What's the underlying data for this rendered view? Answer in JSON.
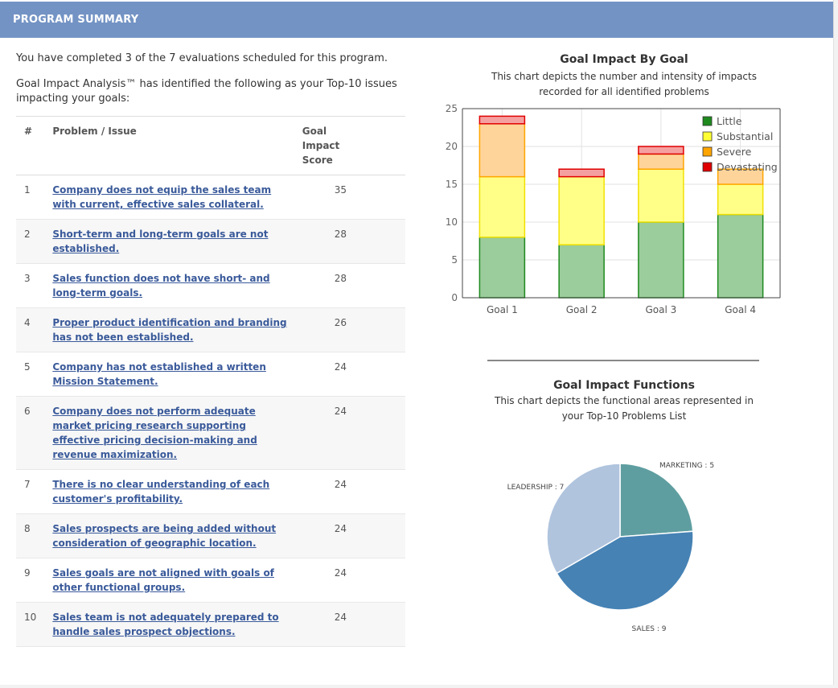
{
  "header": {
    "title": "PROGRAM SUMMARY"
  },
  "intro": {
    "completed": "You have completed 3 of the 7 evaluations scheduled for this program.",
    "analysis": "Goal Impact Analysis™ has identified the following as your Top-10 issues impacting your goals:"
  },
  "table": {
    "headers": {
      "num": "#",
      "problem": "Problem / Issue",
      "score": "Goal Impact Score"
    },
    "rows": [
      {
        "num": "1",
        "problem": "Company does not equip the sales team with current, effective sales collateral.",
        "score": "35"
      },
      {
        "num": "2",
        "problem": "Short-term and long-term goals are not established.",
        "score": "28"
      },
      {
        "num": "3",
        "problem": "Sales function does not have short- and long-term goals.",
        "score": "28"
      },
      {
        "num": "4",
        "problem": "Proper product identification and branding has not been established.",
        "score": "26"
      },
      {
        "num": "5",
        "problem": "Company has not established a written Mission Statement.",
        "score": "24"
      },
      {
        "num": "6",
        "problem": "Company does not perform adequate market pricing research supporting effective pricing decision-making and revenue maximization.",
        "score": "24"
      },
      {
        "num": "7",
        "problem": "There is no clear understanding of each customer's profitability.",
        "score": "24"
      },
      {
        "num": "8",
        "problem": "Sales prospects are being added without consideration of geographic location.",
        "score": "24"
      },
      {
        "num": "9",
        "problem": "Sales goals are not aligned with goals of other functional groups.",
        "score": "24"
      },
      {
        "num": "10",
        "problem": "Sales team is not adequately prepared to handle sales prospect objections.",
        "score": "24"
      }
    ]
  },
  "bar_chart": {
    "title": "Goal Impact By Goal",
    "subtitle": "This chart depicts the number and intensity of impacts recorded for all identified problems"
  },
  "pie_chart": {
    "title": "Goal Impact Functions",
    "subtitle": "This chart depicts the functional areas represented in your Top-10 Problems List"
  },
  "colors": {
    "header": "#7393c4",
    "link": "#3a5a9a",
    "little": "#2e8b2e",
    "substantial": "#f5f500",
    "severe": "#ffa500",
    "devastating": "#e00000",
    "marketing": "#5f9ea0",
    "sales": "#4682b4",
    "leadership": "#b0c4de"
  },
  "chart_data": [
    {
      "type": "bar",
      "stacked": true,
      "title": "Goal Impact By Goal",
      "categories": [
        "Goal 1",
        "Goal 2",
        "Goal 3",
        "Goal 4"
      ],
      "series": [
        {
          "name": "Little",
          "values": [
            8,
            7,
            10,
            11
          ],
          "fill": "#9bcc9b",
          "stroke": "#1e8a1e"
        },
        {
          "name": "Substantial",
          "values": [
            8,
            9,
            7,
            4
          ],
          "fill": "#ffff88",
          "stroke": "#f0e000"
        },
        {
          "name": "Severe",
          "values": [
            7,
            0,
            2,
            2
          ],
          "fill": "#ffd49a",
          "stroke": "#ffa500"
        },
        {
          "name": "Devastating",
          "values": [
            1,
            1,
            1,
            0
          ],
          "fill": "#f5a0a0",
          "stroke": "#e00000"
        }
      ],
      "ylim": [
        0,
        25
      ],
      "yticks": [
        0,
        5,
        10,
        15,
        20,
        25
      ],
      "grid": true,
      "legend": "top-right"
    },
    {
      "type": "pie",
      "title": "Goal Impact Functions",
      "slices": [
        {
          "label": "MARKETING : 5",
          "value": 5,
          "color": "#5f9ea0"
        },
        {
          "label": "SALES : 9",
          "value": 9,
          "color": "#4682b4"
        },
        {
          "label": "LEADERSHIP : 7",
          "value": 7,
          "color": "#b0c4de"
        }
      ]
    }
  ]
}
